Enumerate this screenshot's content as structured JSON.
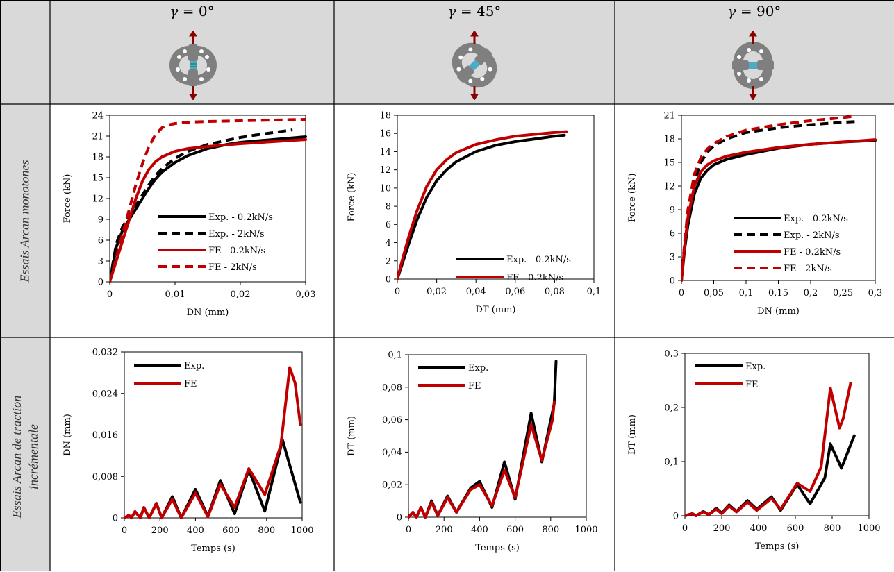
{
  "header": {
    "columns": [
      {
        "symbol": "γ",
        "value": "= 0°"
      },
      {
        "symbol": "γ",
        "value": "= 45°"
      },
      {
        "symbol": "γ",
        "value": "= 90°"
      }
    ]
  },
  "rows": [
    {
      "label_lines": [
        "Essais Arcan monotones"
      ]
    },
    {
      "label_lines": [
        "Essais Arcan de traction",
        "incrémentale"
      ]
    }
  ],
  "colors": {
    "exp": "#000000",
    "fe": "#c00000",
    "header_bg": "#d9d9d9",
    "specimen": "#7f7f7f",
    "arrow": "#8b0000",
    "gauge": "#4bacc6"
  },
  "icons": [
    "arcan-fixture-0deg-icon",
    "arcan-fixture-45deg-icon",
    "arcan-fixture-90deg-icon"
  ],
  "chart_data": [
    {
      "type": "line",
      "id": "mono-0",
      "xlabel": "DN (mm)",
      "ylabel": "Force (kN)",
      "xlim": [
        0,
        0.03
      ],
      "ylim": [
        0,
        24
      ],
      "xticks": [
        0,
        0.01,
        0.02,
        0.03
      ],
      "xtick_labels": [
        "0",
        "0,01",
        "0,02",
        "0,03"
      ],
      "yticks": [
        0,
        3,
        6,
        9,
        12,
        15,
        18,
        21,
        24
      ],
      "ytick_labels": [
        "0",
        "3",
        "6",
        "9",
        "12",
        "15",
        "18",
        "21",
        "24"
      ],
      "legend_position": "lower-right",
      "series": [
        {
          "name": "Exp. - 0.2kN/s",
          "color": "exp",
          "dash": false,
          "x": [
            0,
            0.001,
            0.002,
            0.003,
            0.004,
            0.005,
            0.006,
            0.007,
            0.008,
            0.01,
            0.012,
            0.015,
            0.018,
            0.02,
            0.025,
            0.03
          ],
          "y": [
            0,
            5,
            7.5,
            9,
            10.5,
            12,
            13.5,
            14.8,
            15.8,
            17.2,
            18.2,
            19.2,
            19.8,
            20.1,
            20.5,
            20.9
          ]
        },
        {
          "name": "Exp.  - 2kN/s",
          "color": "exp",
          "dash": true,
          "x": [
            0,
            0.001,
            0.002,
            0.003,
            0.004,
            0.005,
            0.006,
            0.007,
            0.008,
            0.01,
            0.012,
            0.015,
            0.018,
            0.02,
            0.022,
            0.025,
            0.028
          ],
          "y": [
            0,
            5.5,
            8,
            9.5,
            11,
            12.5,
            14,
            15.3,
            16.3,
            17.8,
            18.8,
            19.8,
            20.4,
            20.8,
            21.1,
            21.5,
            21.9
          ]
        },
        {
          "name": "FE - 0.2kN/s",
          "color": "fe",
          "dash": false,
          "x": [
            0,
            0.001,
            0.002,
            0.003,
            0.004,
            0.005,
            0.006,
            0.007,
            0.008,
            0.01,
            0.012,
            0.015,
            0.02,
            0.025,
            0.03
          ],
          "y": [
            0,
            3,
            6,
            9,
            12,
            14.5,
            16.2,
            17.3,
            18,
            18.8,
            19.2,
            19.5,
            19.9,
            20.2,
            20.5
          ]
        },
        {
          "name": "FE - 2kN/s",
          "color": "fe",
          "dash": true,
          "x": [
            0,
            0.001,
            0.002,
            0.003,
            0.004,
            0.005,
            0.006,
            0.007,
            0.008,
            0.009,
            0.01,
            0.012,
            0.015,
            0.02,
            0.025,
            0.03
          ],
          "y": [
            0,
            3.5,
            7,
            10.5,
            14,
            17,
            19.5,
            21.2,
            22.2,
            22.6,
            22.8,
            23,
            23.1,
            23.2,
            23.3,
            23.4
          ]
        }
      ]
    },
    {
      "type": "line",
      "id": "mono-45",
      "xlabel": "DT (mm)",
      "ylabel": "Force (kN)",
      "xlim": [
        0,
        0.1
      ],
      "ylim": [
        0,
        18
      ],
      "xticks": [
        0,
        0.02,
        0.04,
        0.06,
        0.08,
        0.1
      ],
      "xtick_labels": [
        "0",
        "0,02",
        "0,04",
        "0,06",
        "0,08",
        "0,1"
      ],
      "yticks": [
        0,
        2,
        4,
        6,
        8,
        10,
        12,
        14,
        16,
        18
      ],
      "ytick_labels": [
        "0",
        "2",
        "4",
        "6",
        "8",
        "10",
        "12",
        "14",
        "16",
        "18"
      ],
      "legend_position": "lower-right",
      "series": [
        {
          "name": "Exp. - 0.2kN/s",
          "color": "exp",
          "dash": false,
          "x": [
            0,
            0.003,
            0.006,
            0.01,
            0.015,
            0.02,
            0.025,
            0.03,
            0.04,
            0.05,
            0.06,
            0.07,
            0.08,
            0.085
          ],
          "y": [
            0,
            2,
            4,
            6.5,
            9,
            10.8,
            12,
            12.9,
            14,
            14.7,
            15.1,
            15.4,
            15.7,
            15.8
          ]
        },
        {
          "name": "FE - 0.2kN/s",
          "color": "fe",
          "dash": false,
          "x": [
            0,
            0.003,
            0.006,
            0.01,
            0.015,
            0.02,
            0.025,
            0.03,
            0.04,
            0.05,
            0.06,
            0.07,
            0.08,
            0.086
          ],
          "y": [
            0,
            2.5,
            4.8,
            7.5,
            10.2,
            12,
            13.1,
            13.9,
            14.8,
            15.3,
            15.7,
            15.9,
            16.1,
            16.2
          ]
        }
      ]
    },
    {
      "type": "line",
      "id": "mono-90",
      "xlabel": "DN (mm)",
      "ylabel": "Force (kN)",
      "xlim": [
        0,
        0.3
      ],
      "ylim": [
        0,
        21
      ],
      "xticks": [
        0,
        0.05,
        0.1,
        0.15,
        0.2,
        0.25,
        0.3
      ],
      "xtick_labels": [
        "0",
        "0,05",
        "0,1",
        "0,15",
        "0,2",
        "0,25",
        "0,3"
      ],
      "yticks": [
        0,
        3,
        6,
        9,
        12,
        15,
        18,
        21
      ],
      "ytick_labels": [
        "0",
        "3",
        "6",
        "9",
        "12",
        "15",
        "18",
        "21"
      ],
      "legend_position": "lower-right",
      "series": [
        {
          "name": "Exp. - 0.2kN/s",
          "color": "exp",
          "dash": false,
          "x": [
            0,
            0.005,
            0.01,
            0.02,
            0.03,
            0.04,
            0.05,
            0.07,
            0.1,
            0.15,
            0.2,
            0.25,
            0.3
          ],
          "y": [
            0,
            4,
            7,
            11,
            13,
            14,
            14.7,
            15.4,
            16,
            16.8,
            17.3,
            17.6,
            17.8
          ]
        },
        {
          "name": "Exp.  - 2kN/s",
          "color": "exp",
          "dash": true,
          "x": [
            0,
            0.005,
            0.01,
            0.02,
            0.03,
            0.04,
            0.05,
            0.07,
            0.1,
            0.15,
            0.2,
            0.25,
            0.27
          ],
          "y": [
            0,
            4.5,
            8,
            12.5,
            15,
            16.3,
            17.1,
            18,
            18.8,
            19.4,
            19.8,
            20.1,
            20.2
          ]
        },
        {
          "name": "FE - 0.2kN/s",
          "color": "fe",
          "dash": false,
          "x": [
            0,
            0.005,
            0.01,
            0.02,
            0.03,
            0.04,
            0.05,
            0.07,
            0.1,
            0.15,
            0.2,
            0.25,
            0.3
          ],
          "y": [
            0,
            4.5,
            8,
            12,
            13.8,
            14.7,
            15.2,
            15.8,
            16.3,
            16.9,
            17.3,
            17.6,
            17.9
          ]
        },
        {
          "name": "FE - 2kN/s",
          "color": "fe",
          "dash": true,
          "x": [
            0,
            0.005,
            0.01,
            0.02,
            0.03,
            0.04,
            0.05,
            0.07,
            0.1,
            0.15,
            0.2,
            0.25,
            0.27
          ],
          "y": [
            0,
            5,
            9,
            13.5,
            15.6,
            16.7,
            17.4,
            18.3,
            19.1,
            19.8,
            20.3,
            20.7,
            20.9
          ]
        }
      ]
    },
    {
      "type": "line",
      "id": "incr-0",
      "xlabel": "Temps  (s)",
      "ylabel": "DN (mm)",
      "xlim": [
        0,
        1000
      ],
      "ylim": [
        0,
        0.032
      ],
      "xticks": [
        0,
        200,
        400,
        600,
        800,
        1000
      ],
      "xtick_labels": [
        "0",
        "200",
        "400",
        "600",
        "800",
        "1000"
      ],
      "yticks": [
        0,
        0.008,
        0.016,
        0.024,
        0.032
      ],
      "ytick_labels": [
        "0",
        "0,008",
        "0,016",
        "0,024",
        "0,032"
      ],
      "legend_position": "upper-left",
      "series": [
        {
          "name": "Exp.",
          "color": "exp",
          "dash": false,
          "x": [
            0,
            25,
            40,
            60,
            90,
            110,
            140,
            180,
            210,
            270,
            320,
            400,
            470,
            540,
            620,
            700,
            790,
            890,
            990
          ],
          "y": [
            0,
            0.0005,
            0,
            0.0012,
            0,
            0.002,
            0,
            0.0028,
            0,
            0.0041,
            0,
            0.0055,
            0.0003,
            0.0072,
            0.0008,
            0.0093,
            0.0013,
            0.015,
            0.003
          ]
        },
        {
          "name": "FE",
          "color": "fe",
          "dash": false,
          "x": [
            0,
            25,
            40,
            60,
            90,
            110,
            140,
            180,
            210,
            270,
            320,
            400,
            470,
            540,
            620,
            700,
            790,
            880,
            930,
            960,
            990
          ],
          "y": [
            0,
            0.0005,
            0,
            0.0012,
            0,
            0.002,
            0,
            0.0028,
            0,
            0.0036,
            0,
            0.0048,
            0.0002,
            0.0065,
            0.002,
            0.0095,
            0.0045,
            0.014,
            0.029,
            0.026,
            0.018
          ]
        }
      ]
    },
    {
      "type": "line",
      "id": "incr-45",
      "xlabel": "Temps  (s)",
      "ylabel": "DT (mm)",
      "xlim": [
        0,
        1000
      ],
      "ylim": [
        0,
        0.1
      ],
      "xticks": [
        0,
        200,
        400,
        600,
        800,
        1000
      ],
      "xtick_labels": [
        "0",
        "200",
        "400",
        "600",
        "800",
        "1000"
      ],
      "yticks": [
        0,
        0.02,
        0.04,
        0.06,
        0.08,
        0.1
      ],
      "ytick_labels": [
        "0",
        "0,02",
        "0,04",
        "0,06",
        "0,08",
        "0,1"
      ],
      "legend_position": "upper-left",
      "series": [
        {
          "name": "Exp.",
          "color": "exp",
          "dash": false,
          "x": [
            0,
            25,
            45,
            70,
            95,
            130,
            165,
            220,
            270,
            350,
            400,
            470,
            540,
            600,
            690,
            750,
            820,
            830
          ],
          "y": [
            0,
            0.003,
            0,
            0.006,
            0,
            0.01,
            0.001,
            0.013,
            0.003,
            0.018,
            0.022,
            0.006,
            0.034,
            0.011,
            0.064,
            0.034,
            0.07,
            0.096
          ]
        },
        {
          "name": "FE",
          "color": "fe",
          "dash": false,
          "x": [
            0,
            25,
            45,
            70,
            95,
            130,
            165,
            220,
            270,
            350,
            400,
            470,
            540,
            600,
            690,
            750,
            810,
            820
          ],
          "y": [
            0,
            0.003,
            0,
            0.006,
            0,
            0.009,
            0.001,
            0.012,
            0.003,
            0.017,
            0.02,
            0.007,
            0.029,
            0.012,
            0.057,
            0.035,
            0.06,
            0.071
          ]
        }
      ]
    },
    {
      "type": "line",
      "id": "incr-90",
      "xlabel": "Temps  (s)",
      "ylabel": "DT (mm)",
      "xlim": [
        0,
        1000
      ],
      "ylim": [
        0,
        0.3
      ],
      "xticks": [
        0,
        200,
        400,
        600,
        800,
        1000
      ],
      "xtick_labels": [
        "0",
        "200",
        "400",
        "600",
        "800",
        "1000"
      ],
      "yticks": [
        0,
        0.1,
        0.2,
        0.3
      ],
      "ytick_labels": [
        "0",
        "0,1",
        "0,2",
        "0,3"
      ],
      "legend_position": "upper-left",
      "series": [
        {
          "name": "Exp.",
          "color": "exp",
          "dash": false,
          "x": [
            0,
            40,
            60,
            100,
            130,
            170,
            200,
            240,
            280,
            340,
            390,
            470,
            520,
            610,
            680,
            760,
            790,
            850,
            920
          ],
          "y": [
            0,
            0.004,
            0,
            0.008,
            0.002,
            0.014,
            0.005,
            0.02,
            0.008,
            0.028,
            0.012,
            0.035,
            0.01,
            0.058,
            0.022,
            0.07,
            0.133,
            0.088,
            0.148
          ]
        },
        {
          "name": "FE",
          "color": "fe",
          "dash": false,
          "x": [
            0,
            40,
            60,
            100,
            130,
            170,
            200,
            240,
            280,
            340,
            390,
            470,
            520,
            610,
            680,
            740,
            790,
            840,
            860,
            900
          ],
          "y": [
            0,
            0.004,
            0,
            0.007,
            0.002,
            0.012,
            0.004,
            0.018,
            0.007,
            0.025,
            0.01,
            0.032,
            0.012,
            0.06,
            0.045,
            0.09,
            0.236,
            0.162,
            0.18,
            0.245
          ]
        }
      ]
    }
  ]
}
